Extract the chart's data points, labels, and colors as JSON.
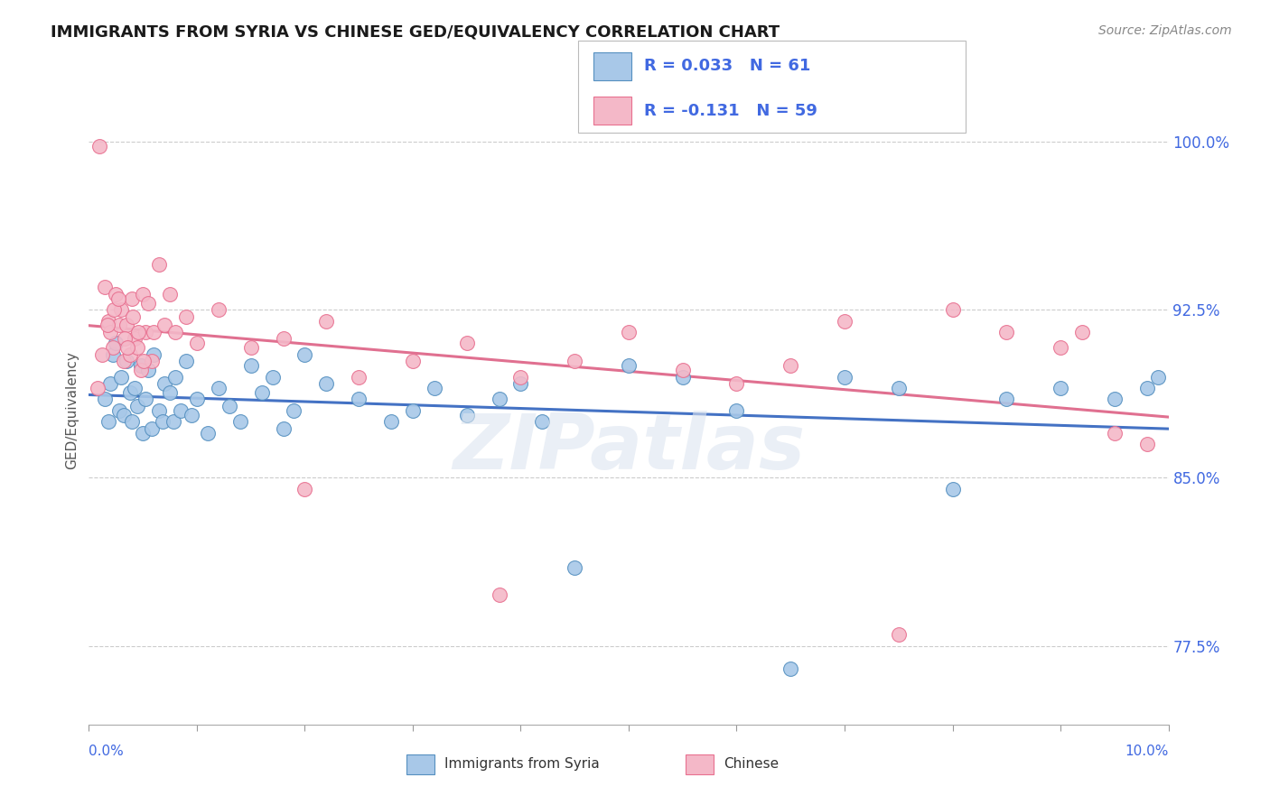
{
  "title": "IMMIGRANTS FROM SYRIA VS CHINESE GED/EQUIVALENCY CORRELATION CHART",
  "source_text": "Source: ZipAtlas.com",
  "ylabel": "GED/Equivalency",
  "xlim": [
    0.0,
    10.0
  ],
  "ylim": [
    74.0,
    102.0
  ],
  "yticks": [
    77.5,
    85.0,
    92.5,
    100.0
  ],
  "ytick_labels": [
    "77.5%",
    "85.0%",
    "92.5%",
    "100.0%"
  ],
  "blue_color": "#a8c8e8",
  "pink_color": "#f4b8c8",
  "blue_edge": "#5590c0",
  "pink_edge": "#e87090",
  "trend_blue": "#4472c4",
  "trend_pink": "#e07090",
  "legend_r_blue": "R = 0.033",
  "legend_n_blue": "N = 61",
  "legend_r_pink": "R = -0.131",
  "legend_n_pink": "N = 59",
  "axis_label_color": "#4169e1",
  "blue_x": [
    0.15,
    0.18,
    0.2,
    0.22,
    0.25,
    0.28,
    0.3,
    0.32,
    0.35,
    0.38,
    0.4,
    0.42,
    0.45,
    0.48,
    0.5,
    0.52,
    0.55,
    0.58,
    0.6,
    0.65,
    0.68,
    0.7,
    0.75,
    0.78,
    0.8,
    0.85,
    0.9,
    0.95,
    1.0,
    1.1,
    1.2,
    1.3,
    1.4,
    1.5,
    1.6,
    1.7,
    1.8,
    1.9,
    2.0,
    2.2,
    2.5,
    2.8,
    3.0,
    3.2,
    3.5,
    3.8,
    4.0,
    4.2,
    4.5,
    5.0,
    5.5,
    6.0,
    6.5,
    7.0,
    7.5,
    8.0,
    8.5,
    9.0,
    9.5,
    9.8,
    9.9
  ],
  "blue_y": [
    88.5,
    87.5,
    89.2,
    90.5,
    91.0,
    88.0,
    89.5,
    87.8,
    90.2,
    88.8,
    87.5,
    89.0,
    88.2,
    90.0,
    87.0,
    88.5,
    89.8,
    87.2,
    90.5,
    88.0,
    87.5,
    89.2,
    88.8,
    87.5,
    89.5,
    88.0,
    90.2,
    87.8,
    88.5,
    87.0,
    89.0,
    88.2,
    87.5,
    90.0,
    88.8,
    89.5,
    87.2,
    88.0,
    90.5,
    89.2,
    88.5,
    87.5,
    88.0,
    89.0,
    87.8,
    88.5,
    89.2,
    87.5,
    81.0,
    90.0,
    89.5,
    88.0,
    76.5,
    89.5,
    89.0,
    84.5,
    88.5,
    89.0,
    88.5,
    89.0,
    89.5
  ],
  "pink_x": [
    0.1,
    0.15,
    0.18,
    0.2,
    0.22,
    0.25,
    0.28,
    0.3,
    0.32,
    0.35,
    0.38,
    0.4,
    0.42,
    0.45,
    0.48,
    0.5,
    0.52,
    0.55,
    0.58,
    0.6,
    0.65,
    0.7,
    0.75,
    0.8,
    0.9,
    1.0,
    1.2,
    1.5,
    1.8,
    2.0,
    2.5,
    3.0,
    3.5,
    3.8,
    4.0,
    4.5,
    5.0,
    5.5,
    6.0,
    6.5,
    7.0,
    7.5,
    8.0,
    8.5,
    9.0,
    9.5,
    9.8,
    2.2,
    0.08,
    0.12,
    0.17,
    0.23,
    0.27,
    0.33,
    0.36,
    0.41,
    0.46,
    0.51,
    9.2
  ],
  "pink_y": [
    99.8,
    93.5,
    92.0,
    91.5,
    90.8,
    93.2,
    91.8,
    92.5,
    90.2,
    91.8,
    90.5,
    93.0,
    91.2,
    90.8,
    89.8,
    93.2,
    91.5,
    92.8,
    90.2,
    91.5,
    94.5,
    91.8,
    93.2,
    91.5,
    92.2,
    91.0,
    92.5,
    90.8,
    91.2,
    84.5,
    89.5,
    90.2,
    91.0,
    79.8,
    89.5,
    90.2,
    91.5,
    89.8,
    89.2,
    90.0,
    92.0,
    78.0,
    92.5,
    91.5,
    90.8,
    87.0,
    86.5,
    92.0,
    89.0,
    90.5,
    91.8,
    92.5,
    93.0,
    91.2,
    90.8,
    92.2,
    91.5,
    90.2,
    91.5
  ]
}
